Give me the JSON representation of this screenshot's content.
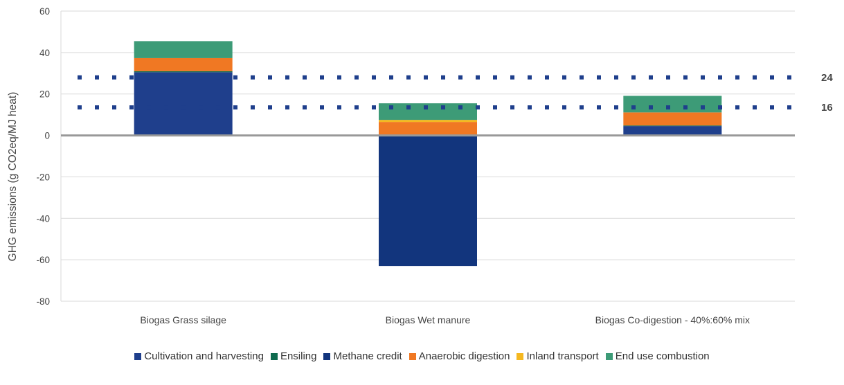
{
  "chart_data": {
    "type": "bar",
    "stacked": true,
    "categories": [
      "Biogas Grass silage",
      "Biogas Wet manure",
      "Biogas Co-digestion - 40%:60% mix"
    ],
    "series": [
      {
        "name": "Cultivation and harvesting",
        "color": "#1f3f8c",
        "values": [
          30.5,
          0,
          4.5
        ]
      },
      {
        "name": "Ensiling",
        "color": "#0f6b4f",
        "values": [
          0.5,
          0,
          0.3
        ]
      },
      {
        "name": "Methane credit",
        "color": "#12357d",
        "values": [
          0,
          -63,
          0
        ]
      },
      {
        "name": "Anaerobic digestion",
        "color": "#f07823",
        "values": [
          6.3,
          6.5,
          6.3
        ]
      },
      {
        "name": "Inland transport",
        "color": "#f5b820",
        "values": [
          0,
          1,
          0
        ]
      },
      {
        "name": "End use combustion",
        "color": "#3d9b77",
        "values": [
          8.2,
          8,
          8
        ]
      }
    ],
    "reference_lines": [
      {
        "label": "24",
        "value": 28,
        "color": "#1f3f8c",
        "style": "dotted"
      },
      {
        "label": "16",
        "value": 13.5,
        "color": "#1f3f8c",
        "style": "dotted"
      }
    ],
    "xlabel": "",
    "ylabel": "GHG emissions (g CO2eq/MJ heat)",
    "ylim": [
      -80,
      60
    ],
    "yticks": [
      60,
      40,
      20,
      0,
      -20,
      -40,
      -60,
      -80
    ],
    "grid": true,
    "legend_position": "bottom"
  }
}
